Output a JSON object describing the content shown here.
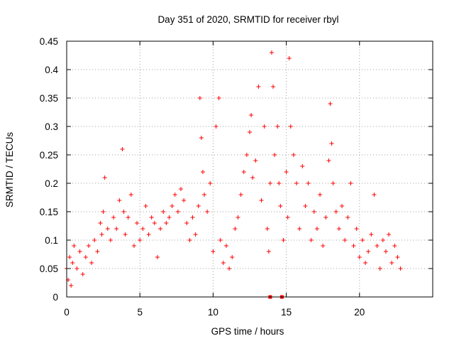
{
  "chart_data": {
    "type": "scatter",
    "title": "Day 351 of 2020, SRMTID for receiver rbyl",
    "xlabel": "GPS time / hours",
    "ylabel": "SRMTID / TECUs",
    "xlim": [
      0,
      25
    ],
    "ylim": [
      0,
      0.45
    ],
    "x_ticks": [
      0,
      5,
      10,
      15,
      20
    ],
    "x_tick_labels": [
      "0",
      "5",
      "10",
      "15",
      "20"
    ],
    "y_ticks": [
      0,
      0.05,
      0.1,
      0.15,
      0.2,
      0.25,
      0.3,
      0.35,
      0.4,
      0.45
    ],
    "y_tick_labels": [
      "0",
      "0.05",
      "0.1",
      "0.15",
      "0.2",
      "0.25",
      "0.3",
      "0.35",
      "0.4",
      "0.45"
    ],
    "grid": true,
    "marker": "+",
    "color": "#ff0000",
    "series": [
      {
        "name": "SRMTID",
        "x": [
          0.0,
          0.1,
          0.2,
          0.3,
          0.4,
          0.5,
          0.7,
          0.9,
          1.1,
          1.3,
          1.5,
          1.7,
          1.9,
          2.1,
          2.3,
          2.4,
          2.5,
          2.6,
          2.8,
          3.0,
          3.2,
          3.4,
          3.6,
          3.8,
          3.9,
          4.0,
          4.2,
          4.4,
          4.6,
          4.8,
          5.0,
          5.2,
          5.4,
          5.6,
          5.8,
          6.0,
          6.2,
          6.4,
          6.6,
          6.8,
          7.0,
          7.2,
          7.4,
          7.6,
          7.8,
          8.0,
          8.2,
          8.4,
          8.6,
          8.8,
          9.0,
          9.1,
          9.2,
          9.3,
          9.4,
          9.6,
          9.8,
          10.0,
          10.2,
          10.4,
          10.5,
          10.7,
          10.9,
          11.1,
          11.3,
          11.5,
          11.7,
          11.9,
          12.1,
          12.3,
          12.5,
          12.6,
          12.7,
          12.9,
          13.1,
          13.3,
          13.5,
          13.7,
          13.8,
          13.9,
          14.0,
          14.1,
          14.2,
          14.4,
          14.5,
          14.6,
          14.8,
          15.0,
          15.1,
          15.2,
          15.3,
          15.5,
          15.7,
          15.9,
          16.1,
          16.3,
          16.5,
          16.7,
          16.9,
          17.1,
          17.3,
          17.5,
          17.7,
          17.9,
          18.0,
          18.1,
          18.2,
          18.4,
          18.6,
          18.8,
          19.0,
          19.2,
          19.4,
          19.6,
          19.8,
          20.0,
          20.2,
          20.4,
          20.6,
          20.8,
          21.0,
          21.2,
          21.4,
          21.6,
          21.8,
          22.0,
          22.2,
          22.4,
          22.6,
          22.8
        ],
        "y": [
          0.05,
          0.03,
          0.07,
          0.02,
          0.06,
          0.09,
          0.05,
          0.08,
          0.04,
          0.07,
          0.09,
          0.06,
          0.1,
          0.08,
          0.13,
          0.11,
          0.15,
          0.21,
          0.12,
          0.1,
          0.14,
          0.12,
          0.17,
          0.26,
          0.15,
          0.11,
          0.14,
          0.18,
          0.09,
          0.13,
          0.1,
          0.12,
          0.16,
          0.11,
          0.14,
          0.13,
          0.07,
          0.12,
          0.15,
          0.13,
          0.14,
          0.16,
          0.18,
          0.15,
          0.19,
          0.17,
          0.13,
          0.1,
          0.14,
          0.11,
          0.16,
          0.35,
          0.28,
          0.22,
          0.18,
          0.15,
          0.2,
          0.08,
          0.3,
          0.35,
          0.1,
          0.06,
          0.09,
          0.05,
          0.07,
          0.12,
          0.14,
          0.18,
          0.22,
          0.25,
          0.29,
          0.32,
          0.21,
          0.24,
          0.37,
          0.17,
          0.3,
          0.12,
          0.08,
          0.2,
          0.43,
          0.37,
          0.25,
          0.3,
          0.2,
          0.16,
          0.1,
          0.22,
          0.14,
          0.42,
          0.3,
          0.25,
          0.2,
          0.12,
          0.23,
          0.16,
          0.2,
          0.1,
          0.15,
          0.12,
          0.18,
          0.09,
          0.14,
          0.24,
          0.34,
          0.27,
          0.2,
          0.15,
          0.12,
          0.16,
          0.1,
          0.14,
          0.2,
          0.09,
          0.12,
          0.07,
          0.1,
          0.06,
          0.08,
          0.11,
          0.18,
          0.09,
          0.05,
          0.1,
          0.08,
          0.11,
          0.06,
          0.09,
          0.07,
          0.05
        ]
      }
    ],
    "zero_markers_x": [
      13.9,
      14.7
    ]
  }
}
